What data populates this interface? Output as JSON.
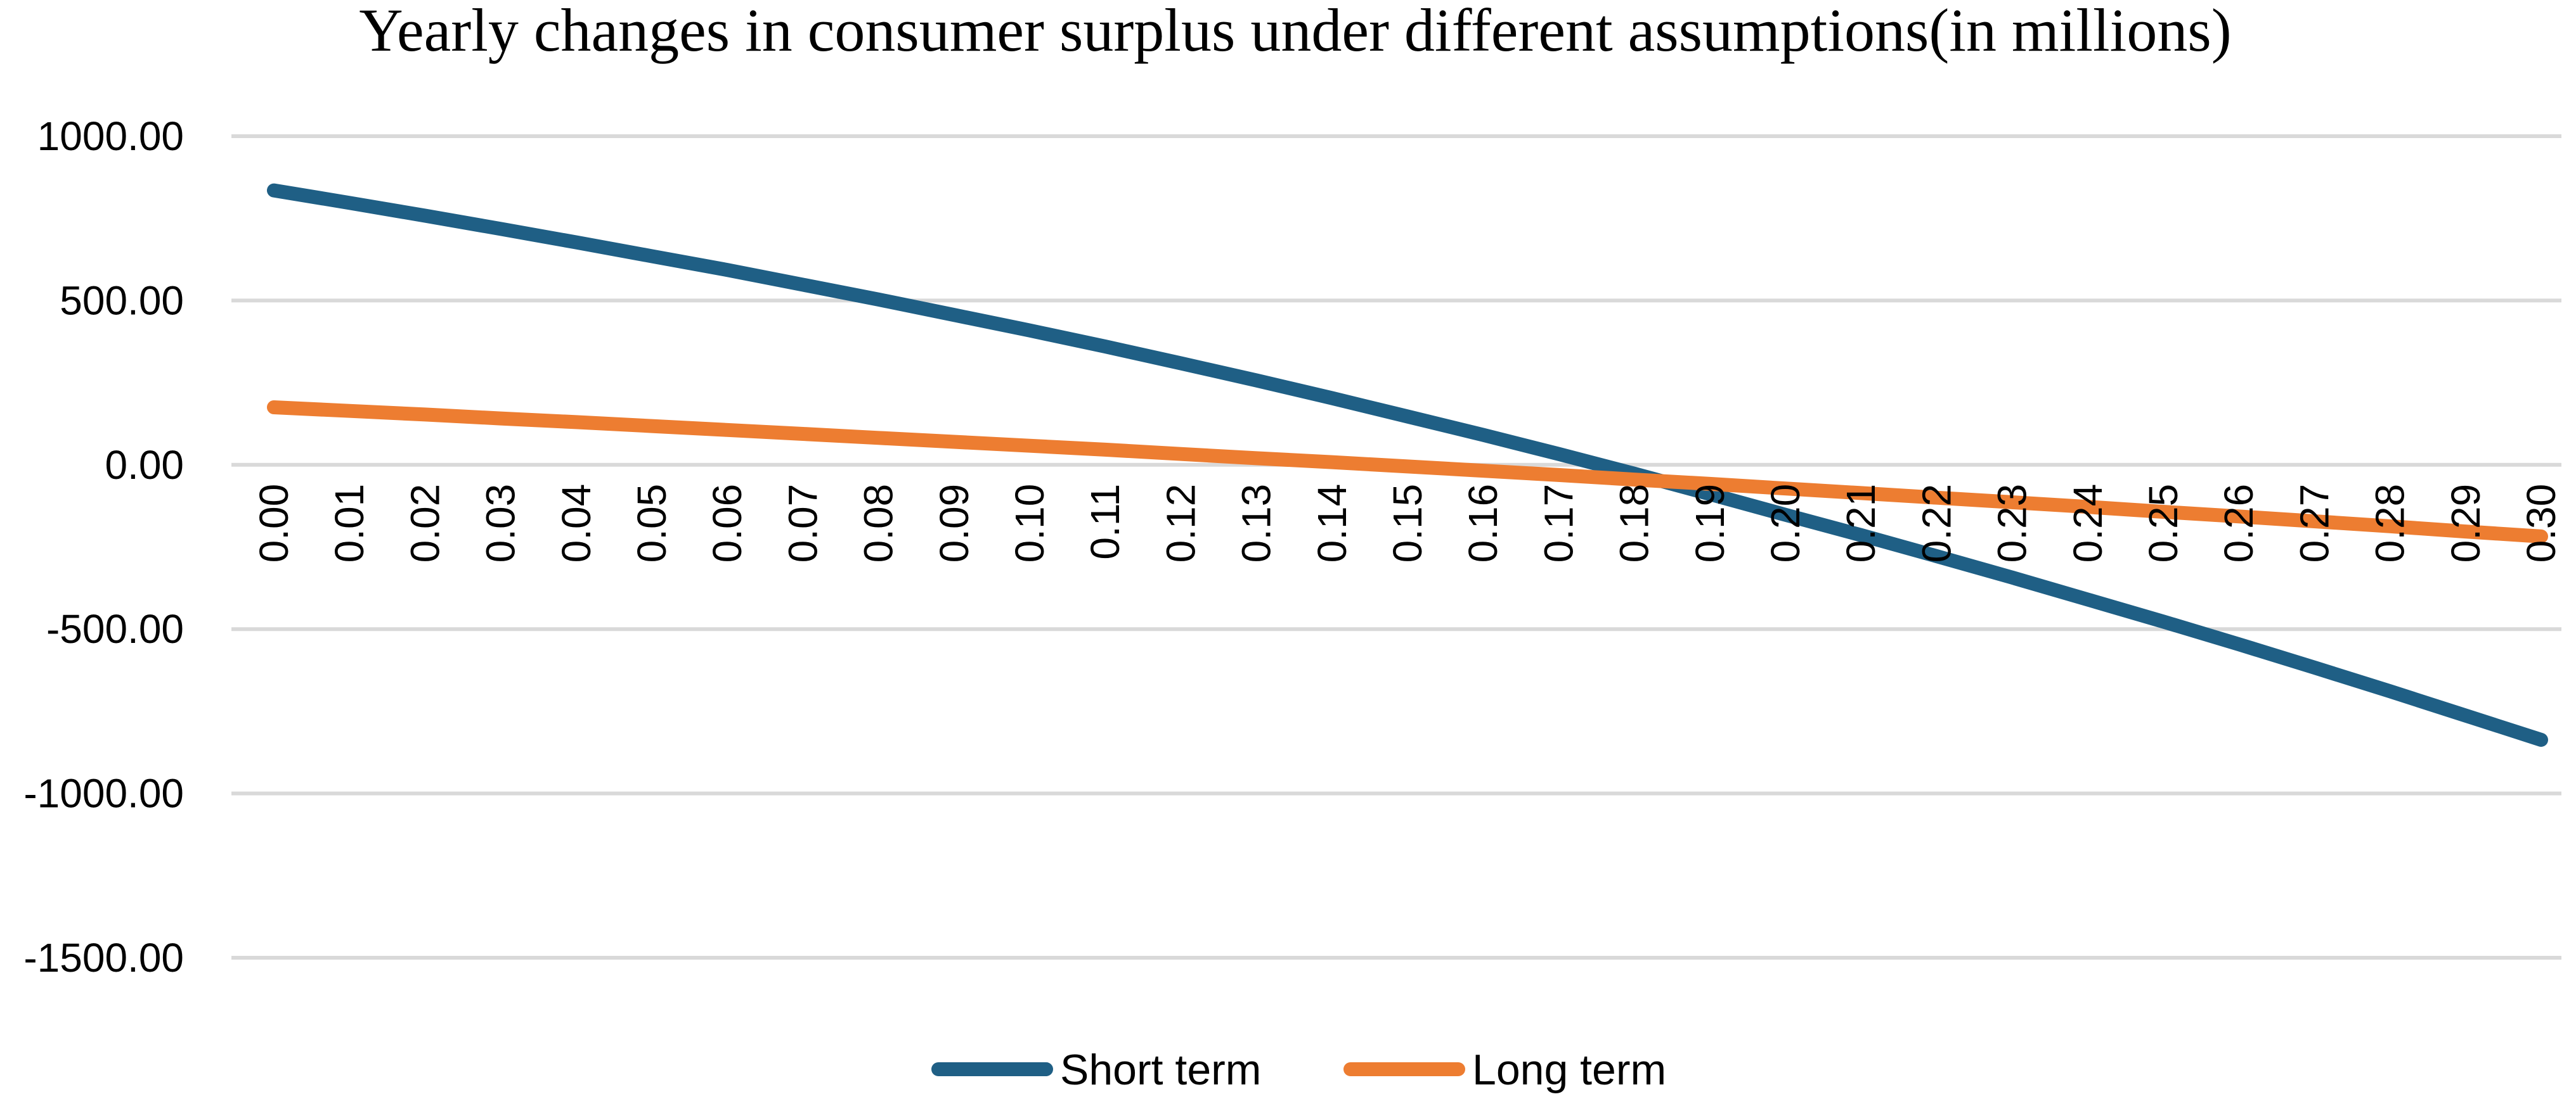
{
  "chart_data": {
    "type": "line",
    "title": "Yearly changes in consumer surplus under different assumptions(in millions)",
    "xlabel": "",
    "ylabel": "",
    "ylim": [
      -1500,
      1000
    ],
    "yticks": [
      "1000.00",
      "500.00",
      "0.00",
      "-500.00",
      "-1000.00",
      "-1500.00"
    ],
    "ytick_values": [
      1000,
      500,
      0,
      -500,
      -1000,
      -1500
    ],
    "categories": [
      "0.00",
      "0.01",
      "0.02",
      "0.03",
      "0.04",
      "0.05",
      "0.06",
      "0.07",
      "0.08",
      "0.09",
      "0.10",
      "0.11",
      "0.12",
      "0.13",
      "0.14",
      "0.15",
      "0.16",
      "0.17",
      "0.18",
      "0.19",
      "0.20",
      "0.21",
      "0.22",
      "0.23",
      "0.24",
      "0.25",
      "0.26",
      "0.27",
      "0.28",
      "0.29",
      "0.30"
    ],
    "grid": true,
    "legend_position": "bottom",
    "series": [
      {
        "name": "Short term",
        "color": "#1f5f85",
        "values": [
          835,
          797,
          758,
          718,
          677,
          635,
          593,
          548,
          503,
          456,
          409,
          360,
          309,
          257,
          203,
          147,
          91,
          33,
          -27,
          -89,
          -152,
          -214,
          -278,
          -343,
          -410,
          -477,
          -546,
          -617,
          -689,
          -763,
          -837
        ]
      },
      {
        "name": "Long term",
        "color": "#ed7d31",
        "values": [
          175,
          164,
          153,
          141,
          130,
          118,
          106,
          94,
          82,
          70,
          58,
          46,
          33,
          20,
          8,
          -5,
          -18,
          -31,
          -45,
          -58,
          -72,
          -86,
          -100,
          -114,
          -128,
          -143,
          -157,
          -172,
          -187,
          -203,
          -218
        ]
      }
    ]
  }
}
